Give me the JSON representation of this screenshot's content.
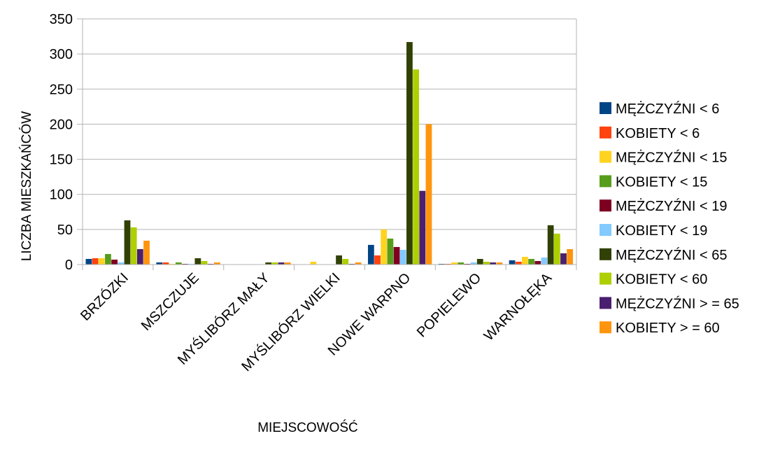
{
  "chart_data": {
    "type": "bar",
    "title": "",
    "xlabel": "MIEJSCOWOŚĆ",
    "ylabel": "LICZBA MIESZKAŃCÓW",
    "ylim": [
      0,
      350
    ],
    "yticks": [
      0,
      50,
      100,
      150,
      200,
      250,
      300,
      350
    ],
    "grid": "horizontal",
    "legend_position": "right",
    "categories": [
      "BRZÓZKI",
      "MSZCZUJE",
      "MYŚLIBÓRZ MAŁY",
      "MYŚLIBÓRZ WIELKI",
      "NOWE WARPNO",
      "POPIELEWO",
      "WARNOŁĘKA"
    ],
    "series": [
      {
        "name": "MĘŻCZYŹNI < 6",
        "color": "#004586",
        "values": [
          8,
          3,
          0,
          0,
          28,
          1,
          6
        ]
      },
      {
        "name": "KOBIETY < 6",
        "color": "#ff420e",
        "values": [
          9,
          3,
          0,
          0,
          13,
          1,
          4
        ]
      },
      {
        "name": "MĘŻCZYŹNI < 15",
        "color": "#ffd320",
        "values": [
          9,
          1,
          0,
          4,
          50,
          3,
          11
        ]
      },
      {
        "name": "KOBIETY < 15",
        "color": "#579d1c",
        "values": [
          15,
          3,
          0,
          0,
          37,
          3,
          8
        ]
      },
      {
        "name": "MĘŻCZYŹNI < 19",
        "color": "#7e0021",
        "values": [
          7,
          1,
          0,
          0,
          25,
          1,
          5
        ]
      },
      {
        "name": "KOBIETY < 19",
        "color": "#83caff",
        "values": [
          3,
          1,
          0,
          0,
          21,
          3,
          10
        ]
      },
      {
        "name": "MĘŻCZYŹNI < 65",
        "color": "#314004",
        "values": [
          63,
          9,
          3,
          13,
          317,
          8,
          56
        ]
      },
      {
        "name": "KOBIETY < 60",
        "color": "#aecf00",
        "values": [
          53,
          5,
          3,
          8,
          278,
          4,
          44
        ]
      },
      {
        "name": "MĘŻCZYŹNI > =  65",
        "color": "#4b1f6f",
        "values": [
          22,
          1,
          3,
          1,
          105,
          3,
          16
        ]
      },
      {
        "name": "KOBIETY > =  60",
        "color": "#ff950e",
        "values": [
          34,
          3,
          3,
          3,
          200,
          3,
          22
        ]
      }
    ]
  }
}
